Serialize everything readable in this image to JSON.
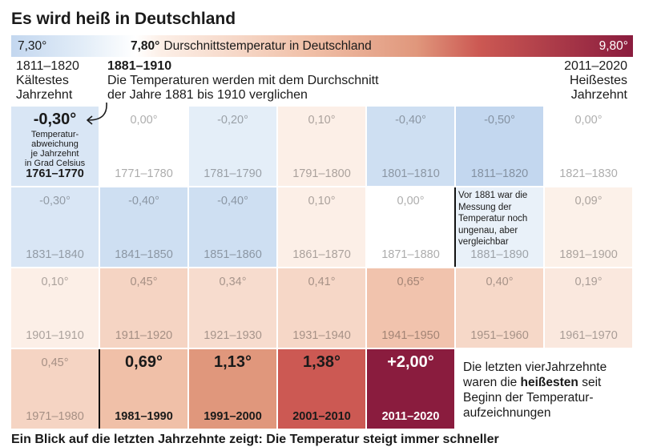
{
  "colors": {
    "text": "#1a1a1a",
    "divider": "#111111",
    "on_dark": "#ffffff"
  },
  "chart_data": {
    "type": "heatmap",
    "title": "Es wird heiß in Deutschland",
    "color_legend": {
      "min_label": "7,30°",
      "avg_value": "7,80°",
      "avg_label": "Durschnittstemperatur in Deutschland",
      "max_label": "9,80°"
    },
    "annotations": {
      "coldest": {
        "years": "1811–1820",
        "line1": "Kältestes",
        "line2": "Jahrzehnt"
      },
      "reference": {
        "years": "1881–1910",
        "line1": "Die Temperaturen werden mit dem Durchschnitt",
        "line2": "der Jahre 1881 bis 1910 verglichen"
      },
      "hottest": {
        "years": "2011–2020",
        "line1": "Heißestes",
        "line2": "Jahrzehnt"
      },
      "cell_note": [
        "Temperatur-",
        "abweichung",
        "je Jahrzehnt",
        "in Grad Celsius"
      ],
      "pre_1881_note": [
        "Vor 1881 war die",
        "Messung der",
        "Temperatur noch",
        "ungenau, aber",
        "vergleichbar"
      ],
      "conclusion": {
        "line1": "Die letzten vierJahrzehnte",
        "line2_pre": "waren die",
        "line2_bold": "heißesten",
        "line2_post": "seit",
        "line3": "Beginn der Temperatur-",
        "line4": "aufzeichnungen"
      }
    },
    "decades": [
      "1761–1770",
      "1771–1780",
      "1781–1790",
      "1791–1800",
      "1801–1810",
      "1811–1820",
      "1821–1830",
      "1831–1840",
      "1841–1850",
      "1851–1860",
      "1861–1870",
      "1871–1880",
      "1881–1890",
      "1891–1900",
      "1901–1910",
      "1911–1920",
      "1921–1930",
      "1931–1940",
      "1941–1950",
      "1951–1960",
      "1961–1970",
      "1971–1980",
      "1981–1990",
      "1991–2000",
      "2001–2010",
      "2011–2020"
    ],
    "values": [
      -0.3,
      0.0,
      -0.2,
      0.1,
      -0.4,
      -0.5,
      0.0,
      -0.3,
      -0.4,
      -0.4,
      0.1,
      0.0,
      null,
      0.09,
      0.1,
      0.45,
      0.34,
      0.41,
      0.65,
      0.4,
      0.19,
      0.45,
      0.69,
      1.13,
      1.38,
      2.0
    ],
    "value_labels": [
      "-0,30°",
      "0,00°",
      "-0,20°",
      "0,10°",
      "-0,40°",
      "-0,50°",
      "0,00°",
      "-0,30°",
      "-0,40°",
      "-0,40°",
      "0,10°",
      "0,00°",
      null,
      "0,09°",
      "0,10°",
      "0,45°",
      "0,34°",
      "0,41°",
      "0,65°",
      "0,40°",
      "0,19°",
      "0,45°",
      "0,69°",
      "1,13°",
      "1,38°",
      "+2,00°"
    ],
    "color_scale": [
      [
        -0.5,
        "#c3d7ef"
      ],
      [
        -0.2,
        "#e4eef8"
      ],
      [
        0.0,
        "#ffffff"
      ],
      [
        0.1,
        "#fcefe7"
      ],
      [
        0.45,
        "#f5d4c3"
      ],
      [
        0.69,
        "#f0c0a8"
      ],
      [
        1.13,
        "#e0977c"
      ],
      [
        1.38,
        "#cc5953"
      ],
      [
        2.0,
        "#8a1c3e"
      ]
    ],
    "note_cell_color": "#e9f1f9"
  },
  "footer": "Ein Blick auf die letzten Jahrzehnte zeigt: Die Temperatur steigt immer schneller"
}
